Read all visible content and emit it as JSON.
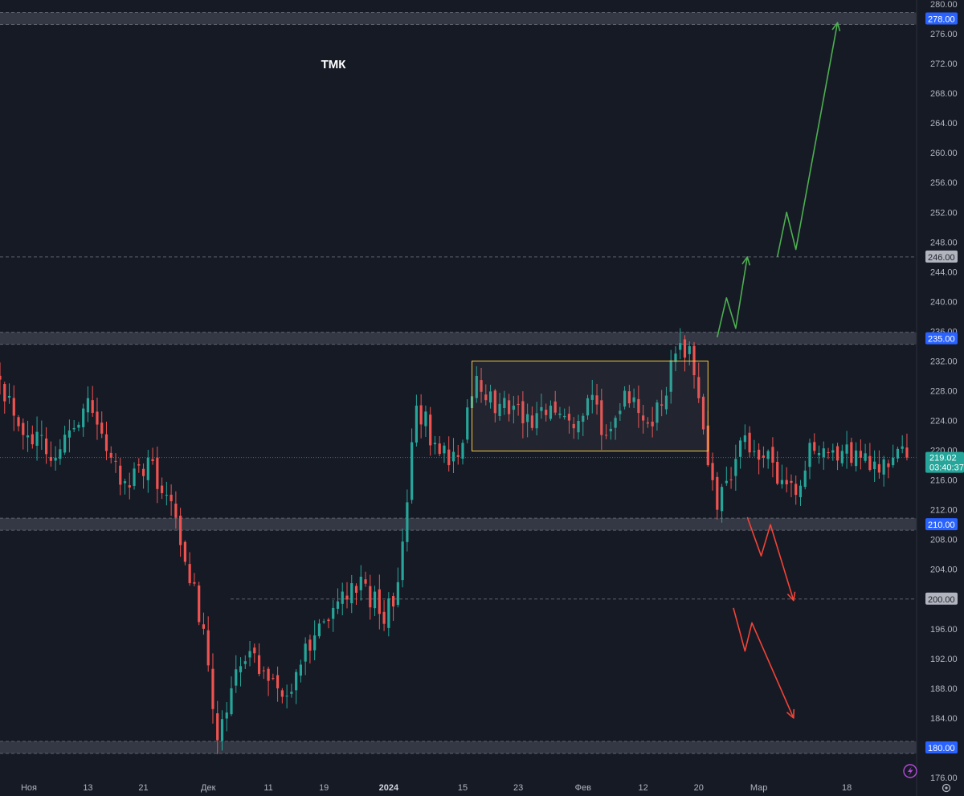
{
  "colors": {
    "background": "#161a25",
    "up": "#26a69a",
    "down": "#ef5350",
    "zone": "#3a3e4a",
    "level_badge": "#2962ff",
    "price_badge": "#26a69a",
    "range_box": "#f5c842",
    "up_arrow": "#4caf50",
    "down_arrow": "#f44336",
    "grid_dash": "#5d606b"
  },
  "chart_data": {
    "type": "candlestick",
    "title": "ТМК",
    "y_axis": {
      "range": [
        176,
        280
      ],
      "ticks": [
        "280.00",
        "276.00",
        "272.00",
        "268.00",
        "264.00",
        "260.00",
        "256.00",
        "252.00",
        "248.00",
        "244.00",
        "240.00",
        "236.00",
        "232.00",
        "228.00",
        "224.00",
        "220.00",
        "216.00",
        "212.00",
        "208.00",
        "204.00",
        "200.00",
        "196.00",
        "192.00",
        "188.00",
        "184.00",
        "180.00",
        "176.00"
      ]
    },
    "x_axis": {
      "ticks": [
        {
          "label": "Ноя",
          "idx": 0
        },
        {
          "label": "13",
          "idx": 19
        },
        {
          "label": "21",
          "idx": 31
        },
        {
          "label": "Дек",
          "idx": 45
        },
        {
          "label": "11",
          "idx": 58
        },
        {
          "label": "19",
          "idx": 70
        },
        {
          "label": "2024",
          "idx": 84,
          "bold": true
        },
        {
          "label": "15",
          "idx": 100
        },
        {
          "label": "23",
          "idx": 112
        },
        {
          "label": "Фев",
          "idx": 126
        },
        {
          "label": "12",
          "idx": 139
        },
        {
          "label": "20",
          "idx": 151
        },
        {
          "label": "Мар",
          "idx": 164
        },
        {
          "label": "18",
          "idx": 183
        }
      ]
    },
    "levels": [
      {
        "price": 278.0,
        "label": "278.00",
        "style": "zone"
      },
      {
        "price": 246.0,
        "label": "246.00",
        "style": "dashed"
      },
      {
        "price": 235.0,
        "label": "235.00",
        "style": "zone"
      },
      {
        "price": 210.0,
        "label": "210.00",
        "style": "zone"
      },
      {
        "price": 200.0,
        "label": "200.00",
        "style": "dashed"
      },
      {
        "price": 180.0,
        "label": "180.00",
        "style": "zone"
      }
    ],
    "current_price": {
      "price": 219.02,
      "label": "219.02",
      "timer": "03:40:37"
    },
    "range_box": {
      "from_idx": 102,
      "to_idx": 153,
      "top": 232.0,
      "bottom": 219.9
    },
    "key_closes": [
      [
        0,
        229.5
      ],
      [
        6,
        222
      ],
      [
        12,
        219
      ],
      [
        19,
        227
      ],
      [
        24,
        219
      ],
      [
        28,
        215
      ],
      [
        32,
        219
      ],
      [
        36,
        214
      ],
      [
        40,
        205
      ],
      [
        44,
        196
      ],
      [
        47,
        181
      ],
      [
        50,
        188
      ],
      [
        54,
        193
      ],
      [
        58,
        189
      ],
      [
        62,
        187
      ],
      [
        66,
        194
      ],
      [
        70,
        197
      ],
      [
        74,
        201
      ],
      [
        78,
        203
      ],
      [
        82,
        198
      ],
      [
        85,
        199
      ],
      [
        88,
        213
      ],
      [
        90,
        226
      ],
      [
        94,
        221
      ],
      [
        97,
        218
      ],
      [
        100,
        221
      ],
      [
        103,
        230
      ],
      [
        107,
        225
      ],
      [
        111,
        226
      ],
      [
        115,
        223
      ],
      [
        119,
        226
      ],
      [
        123,
        224
      ],
      [
        127,
        227
      ],
      [
        131,
        222
      ],
      [
        135,
        228
      ],
      [
        139,
        224
      ],
      [
        143,
        226
      ],
      [
        146,
        233
      ],
      [
        149,
        234
      ],
      [
        151,
        227
      ],
      [
        153,
        218
      ],
      [
        155,
        212
      ],
      [
        158,
        216
      ],
      [
        161,
        222
      ],
      [
        165,
        219
      ],
      [
        169,
        216
      ],
      [
        172,
        214
      ],
      [
        175,
        221
      ],
      [
        180,
        220
      ],
      [
        186,
        219
      ],
      [
        190,
        217
      ],
      [
        193,
        219
      ],
      [
        196,
        219.02
      ]
    ],
    "arrows": {
      "up": [
        [
          [
            155,
            235.2
          ],
          [
            157,
            240.5
          ],
          [
            159,
            236.4
          ],
          [
            161.5,
            246.0
          ]
        ],
        [
          [
            168,
            246.0
          ],
          [
            170,
            252.0
          ],
          [
            172,
            247.0
          ],
          [
            181,
            277.5
          ]
        ]
      ],
      "down": [
        [
          [
            161.5,
            211.0
          ],
          [
            164.5,
            205.8
          ],
          [
            166.5,
            210.0
          ],
          [
            171.5,
            199.8
          ]
        ],
        [
          [
            158.5,
            198.8
          ],
          [
            161,
            193.0
          ],
          [
            162.5,
            196.8
          ],
          [
            171.5,
            184.0
          ]
        ]
      ]
    }
  }
}
